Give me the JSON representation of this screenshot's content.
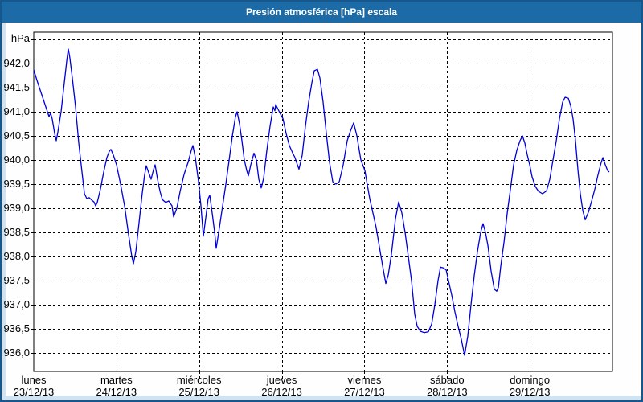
{
  "window_title": "Presión atmosférica [hPa] escala",
  "colors": {
    "titlebar_bg": "#1d6ba6",
    "titlebar_text": "#ffffff",
    "outer_border": "#17578c",
    "inner_strip": "#cfe3f3",
    "plot_bg": "#ffffff",
    "grid": "#000000",
    "line": "#0000dd"
  },
  "chart_data": {
    "type": "line",
    "title": "Presión atmosférica [hPa] escala",
    "ylabel": "hPa",
    "xlabel": "",
    "legend": "none",
    "grid": "dashed",
    "ylim": [
      935.62,
      942.65
    ],
    "xlim_days": [
      0,
      7
    ],
    "y_gridline_top": 942.5,
    "y_tick_values": [
      942.0,
      941.5,
      941.0,
      940.5,
      940.0,
      939.5,
      939.0,
      938.5,
      938.0,
      937.5,
      937.0,
      936.5,
      936.0
    ],
    "y_tick_labels": [
      "942,0",
      "941,5",
      "941,0",
      "940,5",
      "940,0",
      "939,5",
      "939,0",
      "938,5",
      "938,0",
      "937,5",
      "937,0",
      "936,5",
      "936,0"
    ],
    "x_categories": [
      {
        "name": "lunes",
        "date": "23/12/13"
      },
      {
        "name": "martes",
        "date": "24/12/13"
      },
      {
        "name": "miércoles",
        "date": "25/12/13"
      },
      {
        "name": "jueves",
        "date": "26/12/13"
      },
      {
        "name": "viernes",
        "date": "27/12/13"
      },
      {
        "name": "sábado",
        "date": "28/12/13"
      },
      {
        "name": "domingo",
        "date": "29/12/13"
      }
    ],
    "series": [
      {
        "name": "Presión atmosférica",
        "unit": "hPa",
        "color": "#0000dd",
        "points": [
          [
            0.0,
            941.87
          ],
          [
            0.039,
            941.65
          ],
          [
            0.078,
            941.45
          ],
          [
            0.126,
            941.2
          ],
          [
            0.165,
            941.0
          ],
          [
            0.185,
            940.9
          ],
          [
            0.204,
            940.97
          ],
          [
            0.224,
            940.85
          ],
          [
            0.253,
            940.55
          ],
          [
            0.272,
            940.4
          ],
          [
            0.292,
            940.58
          ],
          [
            0.331,
            941.0
          ],
          [
            0.369,
            941.6
          ],
          [
            0.399,
            942.05
          ],
          [
            0.418,
            942.3
          ],
          [
            0.437,
            942.12
          ],
          [
            0.467,
            941.7
          ],
          [
            0.506,
            941.1
          ],
          [
            0.544,
            940.35
          ],
          [
            0.583,
            939.75
          ],
          [
            0.613,
            939.3
          ],
          [
            0.642,
            939.2
          ],
          [
            0.671,
            939.22
          ],
          [
            0.7,
            939.17
          ],
          [
            0.729,
            939.13
          ],
          [
            0.749,
            939.05
          ],
          [
            0.768,
            939.12
          ],
          [
            0.807,
            939.4
          ],
          [
            0.846,
            939.75
          ],
          [
            0.885,
            940.05
          ],
          [
            0.914,
            940.18
          ],
          [
            0.933,
            940.22
          ],
          [
            0.963,
            940.1
          ],
          [
            1.001,
            939.9
          ],
          [
            1.05,
            939.5
          ],
          [
            1.099,
            939.05
          ],
          [
            1.147,
            938.45
          ],
          [
            1.186,
            938.0
          ],
          [
            1.206,
            937.85
          ],
          [
            1.235,
            938.1
          ],
          [
            1.274,
            938.7
          ],
          [
            1.312,
            939.3
          ],
          [
            1.342,
            939.7
          ],
          [
            1.361,
            939.88
          ],
          [
            1.39,
            939.74
          ],
          [
            1.419,
            939.6
          ],
          [
            1.449,
            939.8
          ],
          [
            1.468,
            939.9
          ],
          [
            1.497,
            939.6
          ],
          [
            1.527,
            939.35
          ],
          [
            1.556,
            939.18
          ],
          [
            1.595,
            939.12
          ],
          [
            1.633,
            939.15
          ],
          [
            1.672,
            939.05
          ],
          [
            1.692,
            938.82
          ],
          [
            1.731,
            939.0
          ],
          [
            1.77,
            939.35
          ],
          [
            1.818,
            939.7
          ],
          [
            1.867,
            939.95
          ],
          [
            1.906,
            940.2
          ],
          [
            1.925,
            940.3
          ],
          [
            1.954,
            940.05
          ],
          [
            1.993,
            939.55
          ],
          [
            2.022,
            939.05
          ],
          [
            2.051,
            938.42
          ],
          [
            2.081,
            938.8
          ],
          [
            2.11,
            939.2
          ],
          [
            2.129,
            939.27
          ],
          [
            2.158,
            938.9
          ],
          [
            2.188,
            938.5
          ],
          [
            2.207,
            938.17
          ],
          [
            2.246,
            938.6
          ],
          [
            2.285,
            939.05
          ],
          [
            2.324,
            939.5
          ],
          [
            2.363,
            940.0
          ],
          [
            2.402,
            940.5
          ],
          [
            2.44,
            940.9
          ],
          [
            2.46,
            941.0
          ],
          [
            2.489,
            940.75
          ],
          [
            2.518,
            940.4
          ],
          [
            2.547,
            940.0
          ],
          [
            2.576,
            939.78
          ],
          [
            2.596,
            939.67
          ],
          [
            2.625,
            939.9
          ],
          [
            2.664,
            940.14
          ],
          [
            2.693,
            940.0
          ],
          [
            2.722,
            939.6
          ],
          [
            2.751,
            939.42
          ],
          [
            2.781,
            939.62
          ],
          [
            2.819,
            940.2
          ],
          [
            2.858,
            940.7
          ],
          [
            2.897,
            941.1
          ],
          [
            2.917,
            941.02
          ],
          [
            2.926,
            941.15
          ],
          [
            2.956,
            941.05
          ],
          [
            2.985,
            940.95
          ],
          [
            3.014,
            940.86
          ],
          [
            3.053,
            940.55
          ],
          [
            3.092,
            940.3
          ],
          [
            3.131,
            940.15
          ],
          [
            3.16,
            940.05
          ],
          [
            3.189,
            939.9
          ],
          [
            3.208,
            939.81
          ],
          [
            3.247,
            940.1
          ],
          [
            3.286,
            940.7
          ],
          [
            3.325,
            941.2
          ],
          [
            3.364,
            941.6
          ],
          [
            3.393,
            941.85
          ],
          [
            3.432,
            941.88
          ],
          [
            3.461,
            941.7
          ],
          [
            3.5,
            941.2
          ],
          [
            3.539,
            940.55
          ],
          [
            3.578,
            939.95
          ],
          [
            3.617,
            939.55
          ],
          [
            3.656,
            939.5
          ],
          [
            3.695,
            939.55
          ],
          [
            3.743,
            939.9
          ],
          [
            3.792,
            940.4
          ],
          [
            3.831,
            940.6
          ],
          [
            3.869,
            940.77
          ],
          [
            3.908,
            940.5
          ],
          [
            3.957,
            940.0
          ],
          [
            4.006,
            939.78
          ],
          [
            4.025,
            939.58
          ],
          [
            4.064,
            939.2
          ],
          [
            4.103,
            938.9
          ],
          [
            4.142,
            938.6
          ],
          [
            4.181,
            938.2
          ],
          [
            4.22,
            937.8
          ],
          [
            4.258,
            937.44
          ],
          [
            4.288,
            937.62
          ],
          [
            4.326,
            938.05
          ],
          [
            4.375,
            938.78
          ],
          [
            4.414,
            939.13
          ],
          [
            4.453,
            938.9
          ],
          [
            4.492,
            938.5
          ],
          [
            4.531,
            938.0
          ],
          [
            4.569,
            937.5
          ],
          [
            4.608,
            936.8
          ],
          [
            4.638,
            936.55
          ],
          [
            4.676,
            936.45
          ],
          [
            4.725,
            936.42
          ],
          [
            4.774,
            936.44
          ],
          [
            4.813,
            936.6
          ],
          [
            4.851,
            937.0
          ],
          [
            4.89,
            937.5
          ],
          [
            4.919,
            937.78
          ],
          [
            4.958,
            937.76
          ],
          [
            4.988,
            937.72
          ],
          [
            5.017,
            937.5
          ],
          [
            5.056,
            937.2
          ],
          [
            5.094,
            936.85
          ],
          [
            5.133,
            936.55
          ],
          [
            5.172,
            936.28
          ],
          [
            5.211,
            935.95
          ],
          [
            5.25,
            936.35
          ],
          [
            5.289,
            937.0
          ],
          [
            5.328,
            937.6
          ],
          [
            5.367,
            938.1
          ],
          [
            5.406,
            938.5
          ],
          [
            5.435,
            938.68
          ],
          [
            5.464,
            938.5
          ],
          [
            5.494,
            938.22
          ],
          [
            5.532,
            937.7
          ],
          [
            5.571,
            937.32
          ],
          [
            5.6,
            937.28
          ],
          [
            5.62,
            937.36
          ],
          [
            5.649,
            937.8
          ],
          [
            5.688,
            938.3
          ],
          [
            5.727,
            938.9
          ],
          [
            5.766,
            939.4
          ],
          [
            5.804,
            939.9
          ],
          [
            5.843,
            940.2
          ],
          [
            5.882,
            940.4
          ],
          [
            5.911,
            940.5
          ],
          [
            5.94,
            940.35
          ],
          [
            5.97,
            940.1
          ],
          [
            5.999,
            939.9
          ],
          [
            6.028,
            939.65
          ],
          [
            6.067,
            939.45
          ],
          [
            6.106,
            939.35
          ],
          [
            6.154,
            939.3
          ],
          [
            6.203,
            939.36
          ],
          [
            6.242,
            939.6
          ],
          [
            6.281,
            940.0
          ],
          [
            6.32,
            940.4
          ],
          [
            6.358,
            940.85
          ],
          [
            6.397,
            941.2
          ],
          [
            6.427,
            941.3
          ],
          [
            6.466,
            941.28
          ],
          [
            6.495,
            941.12
          ],
          [
            6.524,
            940.85
          ],
          [
            6.553,
            940.4
          ],
          [
            6.582,
            939.8
          ],
          [
            6.611,
            939.3
          ],
          [
            6.641,
            938.95
          ],
          [
            6.67,
            938.76
          ],
          [
            6.709,
            938.92
          ],
          [
            6.748,
            939.15
          ],
          [
            6.787,
            939.4
          ],
          [
            6.826,
            939.7
          ],
          [
            6.864,
            939.95
          ],
          [
            6.884,
            940.05
          ],
          [
            6.913,
            939.9
          ],
          [
            6.942,
            939.78
          ],
          [
            6.961,
            939.75
          ]
        ]
      }
    ]
  }
}
